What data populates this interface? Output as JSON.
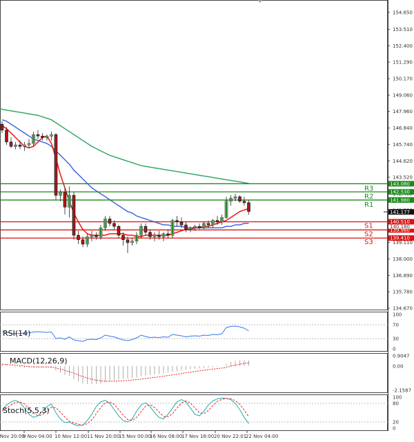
{
  "chart_data": {
    "type": "candlestick",
    "main": {
      "price_ticks": [
        "154.650",
        "153.510",
        "152.400",
        "151.290",
        "150.170",
        "149.060",
        "147.960",
        "146.840",
        "145.740",
        "144.620",
        "143.520",
        "142.400",
        "141.290",
        "140.180",
        "139.110",
        "138.000",
        "136.890",
        "135.780",
        "134.670"
      ],
      "levels": [
        {
          "name": "R3",
          "value": "143.080",
          "color": "#1a8a1a"
        },
        {
          "name": "R2",
          "value": "142.530",
          "color": "#1a8a1a"
        },
        {
          "name": "R1",
          "value": "141.980",
          "color": "#1a8a1a"
        },
        {
          "name": "S1",
          "value": "140.510",
          "color": "#dd1111"
        },
        {
          "name": "S2",
          "value": "139.960",
          "color": "#dd1111"
        },
        {
          "name": "S3",
          "value": "139.410",
          "color": "#dd1111"
        }
      ],
      "current_price": "141.177",
      "hidden_tag": "140.180",
      "candles": [
        [
          147.1,
          147.3,
          146.5,
          146.7
        ],
        [
          146.7,
          146.9,
          145.7,
          145.9
        ],
        [
          145.9,
          146.2,
          145.5,
          145.6
        ],
        [
          145.6,
          145.9,
          145.4,
          145.7
        ],
        [
          145.7,
          146.0,
          145.4,
          145.6
        ],
        [
          145.6,
          145.9,
          145.3,
          145.7
        ],
        [
          145.7,
          146.1,
          145.5,
          145.8
        ],
        [
          145.8,
          146.6,
          145.6,
          146.4
        ],
        [
          146.4,
          146.7,
          146.1,
          146.3
        ],
        [
          146.3,
          146.5,
          146.0,
          146.2
        ],
        [
          146.2,
          146.4,
          146.0,
          146.3
        ],
        [
          146.3,
          146.6,
          146.0,
          146.4
        ],
        [
          146.4,
          146.5,
          142.0,
          142.3
        ],
        [
          142.3,
          142.7,
          141.9,
          142.5
        ],
        [
          142.5,
          142.8,
          141.0,
          141.5
        ],
        [
          141.5,
          142.9,
          140.8,
          142.3
        ],
        [
          142.3,
          142.5,
          139.3,
          139.6
        ],
        [
          139.6,
          139.9,
          139.0,
          139.3
        ],
        [
          139.3,
          139.5,
          138.8,
          139.0
        ],
        [
          139.0,
          139.7,
          138.8,
          139.5
        ],
        [
          139.5,
          139.9,
          139.2,
          139.6
        ],
        [
          139.6,
          139.8,
          139.3,
          139.5
        ],
        [
          139.5,
          140.3,
          139.3,
          140.1
        ],
        [
          140.1,
          140.9,
          139.9,
          140.7
        ],
        [
          140.7,
          140.9,
          140.2,
          140.4
        ],
        [
          140.4,
          140.6,
          140.0,
          140.2
        ],
        [
          140.2,
          140.3,
          139.4,
          139.6
        ],
        [
          139.6,
          139.8,
          138.9,
          139.3
        ],
        [
          139.3,
          139.5,
          138.4,
          139.1
        ],
        [
          139.1,
          139.4,
          138.9,
          139.2
        ],
        [
          139.2,
          139.8,
          139.0,
          139.6
        ],
        [
          139.6,
          140.4,
          139.4,
          140.2
        ],
        [
          140.2,
          140.4,
          139.6,
          139.8
        ],
        [
          139.8,
          140.0,
          139.3,
          139.5
        ],
        [
          139.5,
          139.8,
          139.2,
          139.6
        ],
        [
          139.6,
          139.9,
          139.3,
          139.5
        ],
        [
          139.5,
          139.8,
          139.2,
          139.7
        ],
        [
          139.7,
          140.0,
          139.4,
          139.6
        ],
        [
          139.6,
          140.7,
          139.4,
          140.6
        ],
        [
          140.6,
          140.9,
          140.2,
          140.5
        ],
        [
          140.5,
          140.8,
          140.1,
          140.3
        ],
        [
          140.3,
          140.5,
          139.8,
          140.0
        ],
        [
          140.0,
          140.2,
          139.8,
          140.1
        ],
        [
          140.1,
          140.3,
          139.9,
          140.2
        ],
        [
          140.2,
          140.4,
          140.0,
          140.1
        ],
        [
          140.1,
          140.5,
          140.0,
          140.4
        ],
        [
          140.4,
          140.6,
          140.1,
          140.3
        ],
        [
          140.3,
          140.7,
          140.1,
          140.6
        ],
        [
          140.6,
          140.9,
          140.3,
          140.5
        ],
        [
          140.5,
          141.0,
          140.3,
          140.8
        ],
        [
          140.8,
          142.2,
          140.7,
          141.9
        ],
        [
          141.9,
          142.3,
          141.6,
          142.1
        ],
        [
          142.1,
          142.4,
          141.9,
          142.2
        ],
        [
          142.2,
          142.3,
          141.8,
          141.9
        ],
        [
          141.9,
          142.2,
          141.6,
          141.8
        ],
        [
          141.8,
          142.0,
          141.0,
          141.2
        ]
      ],
      "ma_red": [
        147.0,
        146.8,
        146.5,
        146.2,
        145.9,
        145.6,
        145.5,
        145.6,
        145.9,
        146.2,
        146.3,
        145.8,
        144.8,
        143.7,
        142.8,
        141.9,
        141.1,
        140.5,
        140.0,
        139.7,
        139.6,
        139.6,
        139.6,
        139.6,
        139.7,
        139.7,
        139.7,
        139.7,
        139.6,
        139.6,
        139.5,
        139.5,
        139.6,
        139.6,
        139.6,
        139.6,
        139.6,
        139.6,
        139.7,
        139.8,
        139.9,
        140.0,
        140.0,
        140.1,
        140.1,
        140.2,
        140.2,
        140.3,
        140.4,
        140.5,
        140.6,
        140.8,
        141.0,
        141.2,
        141.3,
        141.4
      ],
      "ma_blue": [
        147.4,
        147.3,
        147.1,
        146.9,
        146.7,
        146.5,
        146.3,
        146.1,
        146.0,
        145.9,
        145.8,
        145.6,
        145.3,
        145.0,
        144.7,
        144.4,
        144.0,
        143.7,
        143.4,
        143.1,
        142.8,
        142.6,
        142.4,
        142.2,
        142.0,
        141.8,
        141.6,
        141.4,
        141.2,
        141.1,
        140.9,
        140.8,
        140.7,
        140.6,
        140.5,
        140.4,
        140.3,
        140.3,
        140.2,
        140.2,
        140.2,
        140.1,
        140.1,
        140.1,
        140.1,
        140.1,
        140.1,
        140.1,
        140.1,
        140.1,
        140.2,
        140.2,
        140.3,
        140.3,
        140.4,
        140.4
      ],
      "ma_green": [
        148.1,
        148.05,
        148.0,
        147.95,
        147.9,
        147.85,
        147.8,
        147.75,
        147.7,
        147.6,
        147.5,
        147.4,
        147.2,
        147.0,
        146.8,
        146.6,
        146.4,
        146.2,
        146.0,
        145.8,
        145.6,
        145.45,
        145.3,
        145.15,
        145.0,
        144.9,
        144.8,
        144.7,
        144.6,
        144.5,
        144.4,
        144.3,
        144.25,
        144.2,
        144.15,
        144.1,
        144.05,
        144.0,
        143.95,
        143.9,
        143.85,
        143.8,
        143.75,
        143.7,
        143.65,
        143.6,
        143.55,
        143.5,
        143.45,
        143.4,
        143.35,
        143.3,
        143.25,
        143.2,
        143.15,
        143.1
      ]
    },
    "rsi": {
      "label": "RSI(14)",
      "ticks": [
        "100",
        "70",
        "30",
        "0"
      ],
      "values": [
        50,
        48,
        45,
        44,
        45,
        46,
        47,
        49,
        50,
        49,
        48,
        49,
        30,
        32,
        28,
        35,
        26,
        24,
        22,
        27,
        28,
        27,
        32,
        40,
        37,
        35,
        30,
        26,
        24,
        27,
        32,
        40,
        36,
        33,
        34,
        33,
        35,
        34,
        42,
        40,
        38,
        35,
        37,
        38,
        37,
        40,
        39,
        42,
        41,
        44,
        62,
        65,
        66,
        64,
        60,
        52
      ]
    },
    "macd": {
      "label": "MACD(12,26,9)",
      "ticks": [
        "0.9047",
        "0.00",
        "-2.1587"
      ],
      "hist": [
        0.2,
        0.15,
        0.05,
        -0.05,
        -0.1,
        -0.15,
        -0.18,
        -0.15,
        -0.1,
        -0.08,
        -0.08,
        -0.1,
        -0.4,
        -0.6,
        -0.8,
        -0.9,
        -1.2,
        -1.4,
        -1.55,
        -1.6,
        -1.62,
        -1.6,
        -1.55,
        -1.45,
        -1.35,
        -1.25,
        -1.2,
        -1.15,
        -1.12,
        -1.08,
        -1.0,
        -0.92,
        -0.85,
        -0.8,
        -0.75,
        -0.7,
        -0.65,
        -0.6,
        -0.52,
        -0.46,
        -0.4,
        -0.35,
        -0.3,
        -0.25,
        -0.22,
        -0.18,
        -0.14,
        -0.1,
        -0.06,
        -0.02,
        0.2,
        0.35,
        0.45,
        0.5,
        0.52,
        0.48
      ],
      "signal": [
        0.15,
        0.14,
        0.11,
        0.07,
        0.03,
        -0.01,
        -0.05,
        -0.08,
        -0.09,
        -0.09,
        -0.09,
        -0.1,
        -0.18,
        -0.28,
        -0.39,
        -0.5,
        -0.64,
        -0.79,
        -0.94,
        -1.07,
        -1.18,
        -1.26,
        -1.32,
        -1.35,
        -1.36,
        -1.35,
        -1.33,
        -1.31,
        -1.28,
        -1.25,
        -1.21,
        -1.17,
        -1.12,
        -1.07,
        -1.02,
        -0.97,
        -0.91,
        -0.85,
        -0.79,
        -0.73,
        -0.67,
        -0.61,
        -0.55,
        -0.49,
        -0.44,
        -0.38,
        -0.33,
        -0.28,
        -0.23,
        -0.19,
        -0.11,
        -0.02,
        0.07,
        0.16,
        0.23,
        0.28
      ]
    },
    "stoch": {
      "label": "Stoch(5,5,3)",
      "ticks": [
        "100",
        "80",
        "20",
        "0"
      ],
      "k": [
        60,
        75,
        85,
        90,
        82,
        65,
        45,
        35,
        40,
        55,
        70,
        78,
        50,
        30,
        18,
        20,
        12,
        8,
        10,
        25,
        45,
        70,
        85,
        90,
        80,
        60,
        40,
        25,
        20,
        30,
        55,
        75,
        82,
        70,
        50,
        35,
        30,
        45,
        65,
        85,
        92,
        85,
        65,
        45,
        40,
        55,
        75,
        88,
        95,
        97,
        96,
        92,
        80,
        60,
        35,
        15
      ],
      "d": [
        55,
        65,
        75,
        83,
        85,
        78,
        64,
        50,
        40,
        43,
        55,
        68,
        66,
        52,
        36,
        22,
        17,
        13,
        10,
        15,
        27,
        47,
        67,
        82,
        85,
        77,
        60,
        42,
        28,
        25,
        35,
        53,
        71,
        76,
        67,
        52,
        38,
        37,
        47,
        65,
        81,
        88,
        81,
        65,
        50,
        47,
        57,
        73,
        86,
        93,
        96,
        95,
        89,
        77,
        58,
        37
      ]
    },
    "x_labels": [
      "8 Nov 20:00",
      "9 Nov 04:00",
      "10 Nov 12:00",
      "11 Nov 20:00",
      "15 Nov 00:00",
      "16 Nov 08:00",
      "17 Nov 16:00",
      "20 Nov 22:01",
      "22 Nov 04:00"
    ]
  },
  "colors": {
    "bull": "#1a8a1a",
    "bear": "#cc1111",
    "ma_red": "#ee1111",
    "ma_blue": "#4466dd",
    "ma_green": "#33aa66",
    "rsi": "#3377ee",
    "stoch_k": "#22aaaa",
    "stoch_d": "#ee2222"
  }
}
